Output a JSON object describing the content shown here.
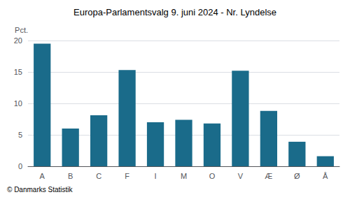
{
  "chart_data": {
    "type": "bar",
    "title": "Europa-Parlamentsvalg 9. juni 2024 - Nr. Lyndelse",
    "ylabel": "Pct.",
    "categories": [
      "A",
      "B",
      "C",
      "F",
      "I",
      "M",
      "O",
      "V",
      "Æ",
      "Ø",
      "Å"
    ],
    "values": [
      19.5,
      6.0,
      8.1,
      15.3,
      7.0,
      7.4,
      6.8,
      15.2,
      8.8,
      3.9,
      1.6
    ],
    "color": "#1a6b8a",
    "ylim": [
      0,
      20
    ],
    "yticks": [
      0,
      5,
      10,
      15,
      20
    ],
    "grid": true,
    "annotations": [
      "© Danmarks Statistik"
    ]
  }
}
